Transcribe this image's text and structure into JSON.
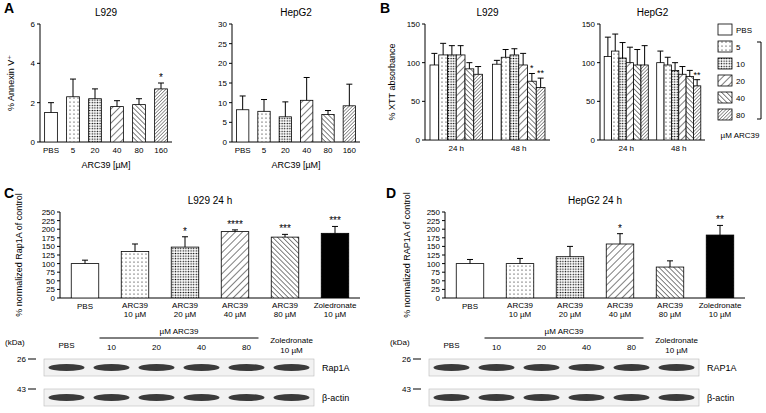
{
  "panel_labels": [
    "A",
    "B",
    "C",
    "D"
  ],
  "chart_data": [
    {
      "type": "bar",
      "title": "L929",
      "x_label": "ARC39 [µM]",
      "y_label": "% Annexin V⁺",
      "categories": [
        "PBS",
        "5",
        "20",
        "40",
        "80",
        "160"
      ],
      "values": [
        1.5,
        2.3,
        2.2,
        1.8,
        1.9,
        2.7
      ],
      "errors": [
        0.5,
        0.9,
        0.5,
        0.3,
        0.3,
        0.3
      ],
      "annotations": [
        null,
        null,
        null,
        null,
        null,
        "*"
      ],
      "colors": [
        "#ffffff",
        "#ffffff",
        "#ffffff",
        "#ffffff",
        "#ffffff",
        "#ffffff"
      ],
      "ylim": [
        0,
        6
      ],
      "yticks": [
        0,
        2,
        4,
        6
      ]
    },
    {
      "type": "bar",
      "title": "HepG2",
      "x_label": "ARC39 [µM]",
      "categories": [
        "PBS",
        "5",
        "20",
        "40",
        "80",
        "160"
      ],
      "values": [
        8.2,
        7.8,
        6.4,
        10.6,
        7.0,
        9.2
      ],
      "errors": [
        3.5,
        3.0,
        3.8,
        5.8,
        1.0,
        5.5
      ],
      "annotations": [
        null,
        null,
        null,
        null,
        null,
        null
      ],
      "colors": [
        "#ffffff",
        "#ffffff",
        "#ffffff",
        "#ffffff",
        "#ffffff",
        "#ffffff"
      ],
      "ylim": [
        0,
        30
      ],
      "yticks": [
        0,
        5,
        10,
        15,
        20,
        25,
        30
      ]
    },
    {
      "type": "bar",
      "title": "L929",
      "y_label": "% XTT absorbance",
      "categories": [
        "24 h",
        "48 h"
      ],
      "series": [
        {
          "name": "PBS",
          "color": "#ffffff",
          "values": [
            97,
            98
          ],
          "errors": [
            15,
            5
          ],
          "annotations": [
            null,
            null
          ]
        },
        {
          "name": "5",
          "color": "#ffffff",
          "values": [
            110,
            107
          ],
          "errors": [
            15,
            10
          ],
          "annotations": [
            null,
            null
          ]
        },
        {
          "name": "10",
          "color": "#ffffff",
          "values": [
            110,
            110
          ],
          "errors": [
            12,
            8
          ],
          "annotations": [
            null,
            null
          ]
        },
        {
          "name": "20",
          "color": "#ffffff",
          "values": [
            110,
            97
          ],
          "errors": [
            12,
            15
          ],
          "annotations": [
            null,
            null
          ]
        },
        {
          "name": "40",
          "color": "#ffffff",
          "values": [
            92,
            76
          ],
          "errors": [
            8,
            10
          ],
          "annotations": [
            null,
            "*"
          ]
        },
        {
          "name": "80",
          "color": "#ffffff",
          "values": [
            85,
            68
          ],
          "errors": [
            10,
            12
          ],
          "annotations": [
            null,
            "**"
          ]
        }
      ],
      "ylim": [
        0,
        150
      ],
      "yticks": [
        0,
        50,
        100,
        150
      ]
    },
    {
      "type": "bar",
      "title": "HepG2",
      "categories": [
        "24 h",
        "48 h"
      ],
      "series": [
        {
          "name": "PBS",
          "color": "#ffffff",
          "values": [
            108,
            100
          ],
          "errors": [
            25,
            15
          ],
          "annotations": [
            null,
            null
          ]
        },
        {
          "name": "5",
          "color": "#ffffff",
          "values": [
            115,
            97
          ],
          "errors": [
            22,
            10
          ],
          "annotations": [
            null,
            null
          ]
        },
        {
          "name": "10",
          "color": "#ffffff",
          "values": [
            106,
            90
          ],
          "errors": [
            20,
            10
          ],
          "annotations": [
            null,
            null
          ]
        },
        {
          "name": "20",
          "color": "#ffffff",
          "values": [
            100,
            85
          ],
          "errors": [
            20,
            10
          ],
          "annotations": [
            null,
            null
          ]
        },
        {
          "name": "40",
          "color": "#ffffff",
          "values": [
            97,
            82
          ],
          "errors": [
            20,
            8
          ],
          "annotations": [
            null,
            null
          ]
        },
        {
          "name": "80",
          "color": "#ffffff",
          "values": [
            97,
            70
          ],
          "errors": [
            25,
            8
          ],
          "annotations": [
            null,
            "**"
          ]
        }
      ],
      "legend": "right",
      "legend_title": "µM ARC39",
      "ylim": [
        0,
        150
      ],
      "yticks": [
        0,
        50,
        100,
        150
      ]
    },
    {
      "type": "bar",
      "title": "L929 24 h",
      "y_label": "% normalized Rap1A of control",
      "categories": [
        "PBS",
        "ARC39 10 µM",
        "ARC39 20 µM",
        "ARC39 40 µM",
        "ARC39 80 µM",
        "Zoledronate 10 µM"
      ],
      "values": [
        100,
        135,
        148,
        193,
        177,
        188
      ],
      "errors": [
        10,
        22,
        30,
        5,
        8,
        20
      ],
      "annotations": [
        null,
        null,
        "*",
        "****",
        "***",
        "***"
      ],
      "colors": [
        "#ffffff",
        "#ffffff",
        "#ffffff",
        "#ffffff",
        "#ffffff",
        "#000000"
      ],
      "ylim": [
        0,
        250
      ],
      "yticks": [
        0,
        25,
        50,
        75,
        100,
        125,
        150,
        175,
        200,
        225,
        250
      ]
    },
    {
      "type": "bar",
      "title": "HepG2 24 h",
      "y_label": "% normalized RAP1A of control",
      "categories": [
        "PBS",
        "ARC39 10 µM",
        "ARC39 20 µM",
        "ARC39 40 µM",
        "ARC39 80 µM",
        "Zoledronate 10 µM"
      ],
      "values": [
        100,
        100,
        120,
        157,
        90,
        183
      ],
      "errors": [
        12,
        15,
        30,
        30,
        18,
        28
      ],
      "annotations": [
        null,
        null,
        null,
        "*",
        null,
        "**"
      ],
      "colors": [
        "#ffffff",
        "#ffffff",
        "#ffffff",
        "#ffffff",
        "#ffffff",
        "#000000"
      ],
      "ylim": [
        0,
        250
      ],
      "yticks": [
        0,
        25,
        50,
        75,
        100,
        125,
        150,
        175,
        200,
        225,
        250
      ]
    }
  ],
  "blots": [
    {
      "kda_label": "(kDa)",
      "markers": [
        26,
        43
      ],
      "lanes": [
        "PBS",
        {
          "group": "µM ARC39",
          "labels": [
            "10",
            "20",
            "40",
            "80"
          ]
        },
        "Zoledronate 10 µM"
      ],
      "bands": [
        "Rap1A",
        "β-actin"
      ]
    },
    {
      "kda_label": "(kDa)",
      "markers": [
        26,
        43
      ],
      "lanes": [
        "PBS",
        {
          "group": "µM ARC39",
          "labels": [
            "10",
            "20",
            "40",
            "80"
          ]
        },
        "Zoledronate 10 µM"
      ],
      "bands": [
        "RAP1A",
        "β-actin"
      ]
    }
  ]
}
